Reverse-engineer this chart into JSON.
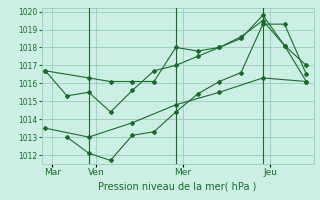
{
  "title": "",
  "xlabel": "Pression niveau de la mer( hPa )",
  "bg_color": "#cceee4",
  "line_color": "#1a6b2a",
  "grid_color": "#99ccbb",
  "tick_label_color": "#1a6b2a",
  "ylim": [
    1011.5,
    1020.2
  ],
  "yticks": [
    1012,
    1013,
    1014,
    1015,
    1016,
    1017,
    1018,
    1019,
    1020
  ],
  "xlim": [
    -2,
    148
  ],
  "xtick_positions": [
    4,
    28,
    76,
    124
  ],
  "xtick_labels": [
    "Mar",
    "Ven",
    "Mer",
    "Jeu"
  ],
  "vline_positions": [
    24,
    72,
    120
  ],
  "series": [
    {
      "x": [
        0,
        24,
        36,
        48,
        60,
        72,
        84,
        96,
        108,
        120,
        132,
        144
      ],
      "y": [
        1016.7,
        1016.3,
        1016.1,
        1016.1,
        1016.1,
        1018.0,
        1017.8,
        1018.0,
        1018.6,
        1019.5,
        1018.1,
        1016.1
      ]
    },
    {
      "x": [
        0,
        12,
        24,
        36,
        48,
        60,
        72,
        84,
        96,
        108,
        120,
        132,
        144
      ],
      "y": [
        1016.7,
        1015.3,
        1015.5,
        1014.4,
        1015.6,
        1016.7,
        1017.0,
        1017.5,
        1018.0,
        1018.5,
        1019.8,
        1018.1,
        1017.0
      ]
    },
    {
      "x": [
        12,
        24,
        36,
        48,
        60,
        72,
        84,
        96,
        108,
        120,
        132,
        144
      ],
      "y": [
        1013.0,
        1012.1,
        1011.7,
        1013.1,
        1013.3,
        1014.4,
        1015.4,
        1016.1,
        1016.6,
        1019.3,
        1019.3,
        1016.5
      ]
    },
    {
      "x": [
        0,
        24,
        48,
        72,
        96,
        120,
        144
      ],
      "y": [
        1013.5,
        1013.0,
        1013.8,
        1014.8,
        1015.5,
        1016.3,
        1016.1
      ]
    }
  ]
}
